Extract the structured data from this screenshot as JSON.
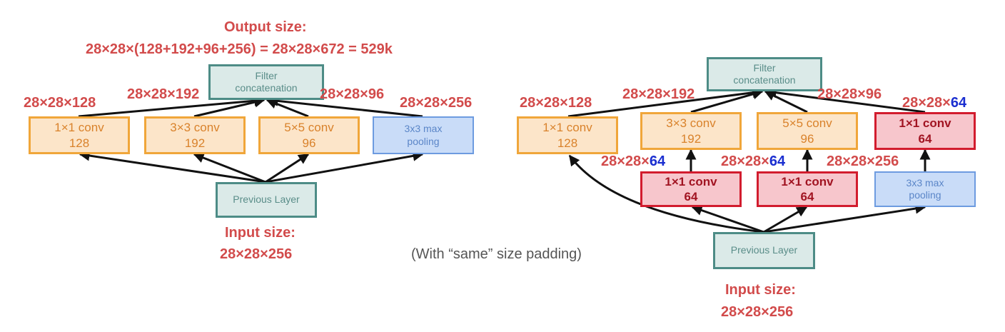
{
  "left": {
    "output_title": "Output size:",
    "output_formula": "28×28×(128+192+96+256) = 28×28×672 = 529k",
    "filter_concat": [
      "Filter",
      "concatenation"
    ],
    "branches": [
      {
        "op": "1×1 conv",
        "n": "128",
        "label": "28×28×128"
      },
      {
        "op": "3×3 conv",
        "n": "192",
        "label": "28×28×192"
      },
      {
        "op": "5×5 conv",
        "n": "96",
        "label": "28×28×96"
      },
      {
        "op": "3x3 max",
        "n": "pooling",
        "label": "28×28×256"
      }
    ],
    "previous_layer": "Previous Layer",
    "input_title": "Input size:",
    "input_size": "28×28×256"
  },
  "padding_note": "(With “same” size padding)",
  "right": {
    "filter_concat": [
      "Filter",
      "concatenation"
    ],
    "top_branches": [
      {
        "op": "1×1 conv",
        "n": "128",
        "label": "28×28×128"
      },
      {
        "op": "3×3 conv",
        "n": "192",
        "label": "28×28×192"
      },
      {
        "op": "5×5 conv",
        "n": "96",
        "label": "28×28×96"
      },
      {
        "op": "1×1 conv",
        "n": "64",
        "label_prefix": "28×28×",
        "label_highlight": "64"
      }
    ],
    "bottom_branches": [
      {
        "op": "1×1 conv",
        "n": "64",
        "label_prefix": "28×28×",
        "label_highlight": "64"
      },
      {
        "op": "1×1 conv",
        "n": "64",
        "label_prefix": "28×28×",
        "label_highlight": "64"
      },
      {
        "op": "3x3 max",
        "n": "pooling",
        "label": "28×28×256"
      }
    ],
    "previous_layer": "Previous Layer",
    "input_title": "Input size:",
    "input_size": "28×28×256"
  },
  "colors": {
    "label_red": "#d24b4b",
    "highlight_blue": "#1a2ed0",
    "arrow": "#111111"
  }
}
